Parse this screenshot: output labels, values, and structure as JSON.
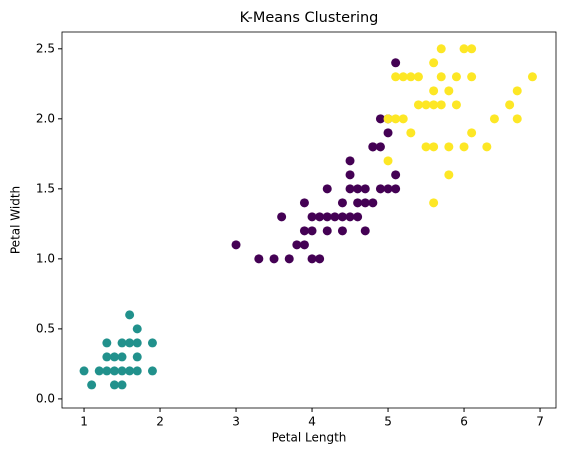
{
  "chart_data": {
    "type": "scatter",
    "title": "K-Means Clustering",
    "x_label": "Petal Length",
    "y_label": "Petal Width",
    "xlim": [
      0.71,
      7.21
    ],
    "ylim": [
      -0.065,
      2.62
    ],
    "xticks": [
      1,
      2,
      3,
      4,
      5,
      6,
      7
    ],
    "yticks": [
      {
        "value": 0,
        "label": "0.0"
      },
      0.5,
      {
        "value": 1,
        "label": "1.0"
      },
      1.5,
      {
        "value": 2,
        "label": "2.0"
      },
      2.5
    ],
    "series": [
      {
        "color": "#440154",
        "x": [
          3.0,
          3.3,
          3.5,
          3.6,
          3.7,
          3.8,
          3.9,
          3.9,
          3.9,
          4.0,
          4.0,
          4.0,
          4.1,
          4.1,
          4.2,
          4.2,
          4.2,
          4.3,
          4.4,
          4.4,
          4.4,
          4.5,
          4.5,
          4.5,
          4.5,
          4.6,
          4.6,
          4.6,
          4.7,
          4.7,
          4.7,
          4.8,
          4.8,
          4.9,
          4.9,
          4.9,
          5.0,
          5.0,
          5.1,
          5.1,
          5.1,
          4.8,
          5.0
        ],
        "values": [
          1.1,
          1.0,
          1.0,
          1.3,
          1.0,
          1.1,
          1.1,
          1.2,
          1.4,
          1.0,
          1.2,
          1.3,
          1.0,
          1.3,
          1.2,
          1.3,
          1.5,
          1.3,
          1.2,
          1.3,
          1.4,
          1.3,
          1.5,
          1.6,
          1.7,
          1.3,
          1.4,
          1.5,
          1.2,
          1.4,
          1.5,
          1.4,
          1.8,
          1.5,
          1.8,
          2.0,
          1.5,
          1.9,
          1.5,
          1.6,
          2.4,
          1.8,
          2.0
        ]
      },
      {
        "color": "#21918c",
        "x": [
          1.0,
          1.1,
          1.2,
          1.3,
          1.3,
          1.3,
          1.4,
          1.4,
          1.4,
          1.5,
          1.5,
          1.5,
          1.5,
          1.6,
          1.6,
          1.6,
          1.7,
          1.7,
          1.7,
          1.7,
          1.9,
          1.9
        ],
        "values": [
          0.2,
          0.1,
          0.2,
          0.2,
          0.3,
          0.4,
          0.2,
          0.3,
          0.1,
          0.2,
          0.4,
          0.1,
          0.3,
          0.2,
          0.6,
          0.4,
          0.2,
          0.3,
          0.4,
          0.5,
          0.2,
          0.4
        ]
      },
      {
        "color": "#fde725",
        "x": [
          5.0,
          5.0,
          5.1,
          5.1,
          5.2,
          5.2,
          5.3,
          5.3,
          5.4,
          5.4,
          5.5,
          5.5,
          5.6,
          5.6,
          5.6,
          5.6,
          5.6,
          5.7,
          5.7,
          5.7,
          5.8,
          5.8,
          5.8,
          5.9,
          5.9,
          6.0,
          6.0,
          6.1,
          6.1,
          6.1,
          6.3,
          6.4,
          6.6,
          6.7,
          6.7,
          6.9
        ],
        "values": [
          1.7,
          2.0,
          2.0,
          2.3,
          2.0,
          2.3,
          1.9,
          2.3,
          2.1,
          2.3,
          1.8,
          2.1,
          1.4,
          1.8,
          2.1,
          2.2,
          2.4,
          2.1,
          2.3,
          2.5,
          1.6,
          1.8,
          2.2,
          2.1,
          2.3,
          1.8,
          2.5,
          1.9,
          2.3,
          2.5,
          1.8,
          2.0,
          2.1,
          2.0,
          2.2,
          2.3
        ]
      }
    ]
  }
}
